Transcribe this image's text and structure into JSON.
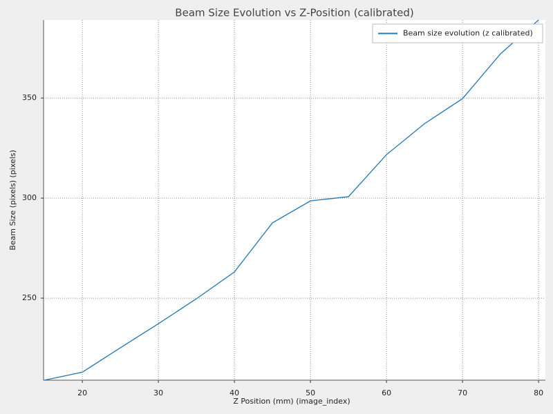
{
  "chart_data": {
    "type": "line",
    "title": "Beam Size Evolution vs Z-Position (calibrated)",
    "x_label": "Z Position (mm) (image_index)",
    "y_label": "Beam Size (pixels) (pixels)",
    "x": [
      15,
      20,
      25,
      30,
      35,
      40,
      45,
      50,
      55,
      60,
      65,
      70,
      75,
      80
    ],
    "series": [
      {
        "name": "Beam size evolution (z calibrated)",
        "color": "#1f77b4",
        "values": [
          209,
          213,
          225.2,
          237.2,
          249.7,
          263.1,
          287.6,
          298.6,
          300.7,
          321.7,
          337.2,
          349.7,
          372.1,
          389
        ]
      }
    ],
    "xlim": [
      14.9,
      80.9
    ],
    "ylim": [
      209,
      389
    ],
    "xticks": [
      20,
      30,
      40,
      50,
      60,
      70,
      80
    ],
    "yticks": [
      250,
      300,
      350
    ],
    "grid": true,
    "legend": "upper right"
  }
}
